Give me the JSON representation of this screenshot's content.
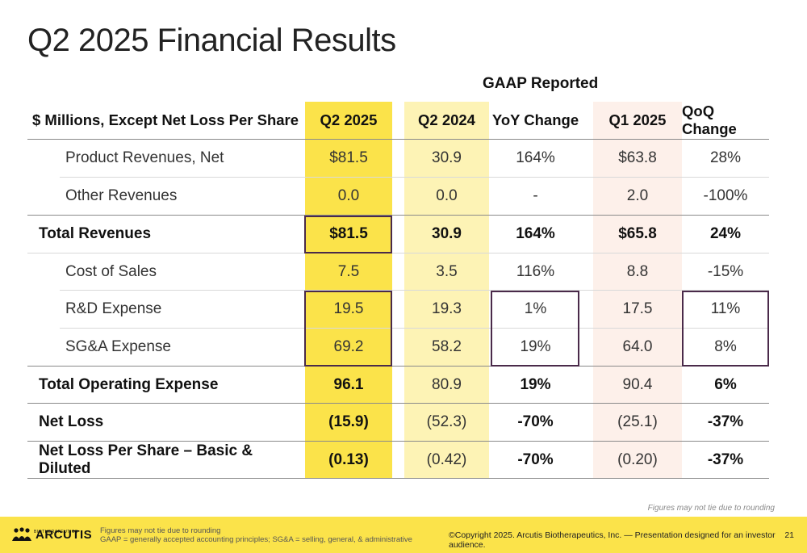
{
  "title": "Q2 2025 Financial Results",
  "gaap_label": "GAAP Reported",
  "headers": {
    "label": "$ Millions, Except Net Loss Per Share",
    "q2_2025": "Q2 2025",
    "q2_2024": "Q2 2024",
    "yoy": "YoY Change",
    "q1_2025": "Q1 2025",
    "qoq": "QoQ Change"
  },
  "rows": [
    {
      "label": "Product Revenues, Net",
      "q2_2025": "$81.5",
      "q2_2024": "30.9",
      "yoy": "164%",
      "q1_2025": "$63.8",
      "qoq": "28%"
    },
    {
      "label": "Other Revenues",
      "q2_2025": "0.0",
      "q2_2024": "0.0",
      "yoy": "-",
      "q1_2025": "2.0",
      "qoq": "-100%"
    },
    {
      "label": "Total Revenues",
      "q2_2025": "$81.5",
      "q2_2024": "30.9",
      "yoy": "164%",
      "q1_2025": "$65.8",
      "qoq": "24%"
    },
    {
      "label": "Cost of Sales",
      "q2_2025": "7.5",
      "q2_2024": "3.5",
      "yoy": "116%",
      "q1_2025": "8.8",
      "qoq": "-15%"
    },
    {
      "label": "R&D Expense",
      "q2_2025": "19.5",
      "q2_2024": "19.3",
      "yoy": "1%",
      "q1_2025": "17.5",
      "qoq": "11%"
    },
    {
      "label": "SG&A Expense",
      "q2_2025": "69.2",
      "q2_2024": "58.2",
      "yoy": "19%",
      "q1_2025": "64.0",
      "qoq": "8%"
    },
    {
      "label": "Total Operating Expense",
      "q2_2025": "96.1",
      "q2_2024": "80.9",
      "yoy": "19%",
      "q1_2025": "90.4",
      "qoq": "6%"
    },
    {
      "label": "Net Loss",
      "q2_2025": "(15.9)",
      "q2_2024": "(52.3)",
      "yoy": "-70%",
      "q1_2025": "(25.1)",
      "qoq": "-37%"
    },
    {
      "label": "Net Loss Per Share – Basic & Diluted",
      "q2_2025": "(0.13)",
      "q2_2024": "(0.42)",
      "yoy": "-70%",
      "q1_2025": "(0.20)",
      "qoq": "-37%"
    }
  ],
  "tie_note": "Figures may not tie due to rounding",
  "footer": {
    "logo_name": "ARCUTIS",
    "logo_sub": "BIOTHERAPEUTICS",
    "note_line1": "Figures may not tie due to rounding",
    "note_line2": "GAAP = generally accepted accounting principles; SG&A = selling, general, & administrative",
    "copyright": "©Copyright 2025. Arcutis Biotherapeutics, Inc.  —  Presentation designed for an investor audience.",
    "page_number": "21"
  },
  "colors": {
    "q2_2025_band": "#fbe34a",
    "q2_2024_band": "#fdf3b5",
    "q1_2025_band": "#fdf0ea",
    "highlight_box": "#4a2a4a",
    "footer_band": "#fbe34a"
  },
  "icons": {
    "logo": "arcutis-people-logo-icon"
  }
}
